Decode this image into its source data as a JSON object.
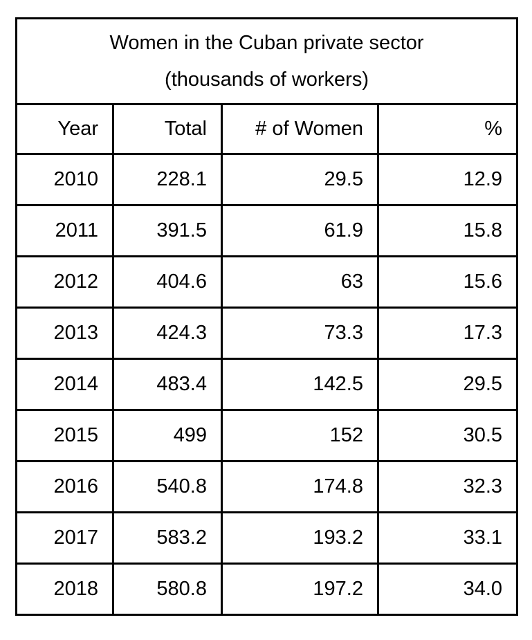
{
  "title": "Women in the Cuban private sector",
  "subtitle": "(thousands of workers)",
  "chart_data": {
    "type": "table",
    "title": "Women in the Cuban private sector",
    "subtitle": "(thousands of workers)",
    "columns": [
      "Year",
      "Total",
      "# of Women",
      "%"
    ],
    "rows": [
      [
        "2010",
        "228.1",
        "29.5",
        "12.9"
      ],
      [
        "2011",
        "391.5",
        "61.9",
        "15.8"
      ],
      [
        "2012",
        "404.6",
        "63",
        "15.6"
      ],
      [
        "2013",
        "424.3",
        "73.3",
        "17.3"
      ],
      [
        "2014",
        "483.4",
        "142.5",
        "29.5"
      ],
      [
        "2015",
        "499",
        "152",
        "30.5"
      ],
      [
        "2016",
        "540.8",
        "174.8",
        "32.3"
      ],
      [
        "2017",
        "583.2",
        "193.2",
        "33.1"
      ],
      [
        "2018",
        "580.8",
        "197.2",
        "34.0"
      ]
    ],
    "layout": {
      "text_color": "#000000",
      "border_color": "#000000",
      "background_color": "#ffffff",
      "cell_alignment": "right",
      "title_alignment": "center"
    }
  }
}
